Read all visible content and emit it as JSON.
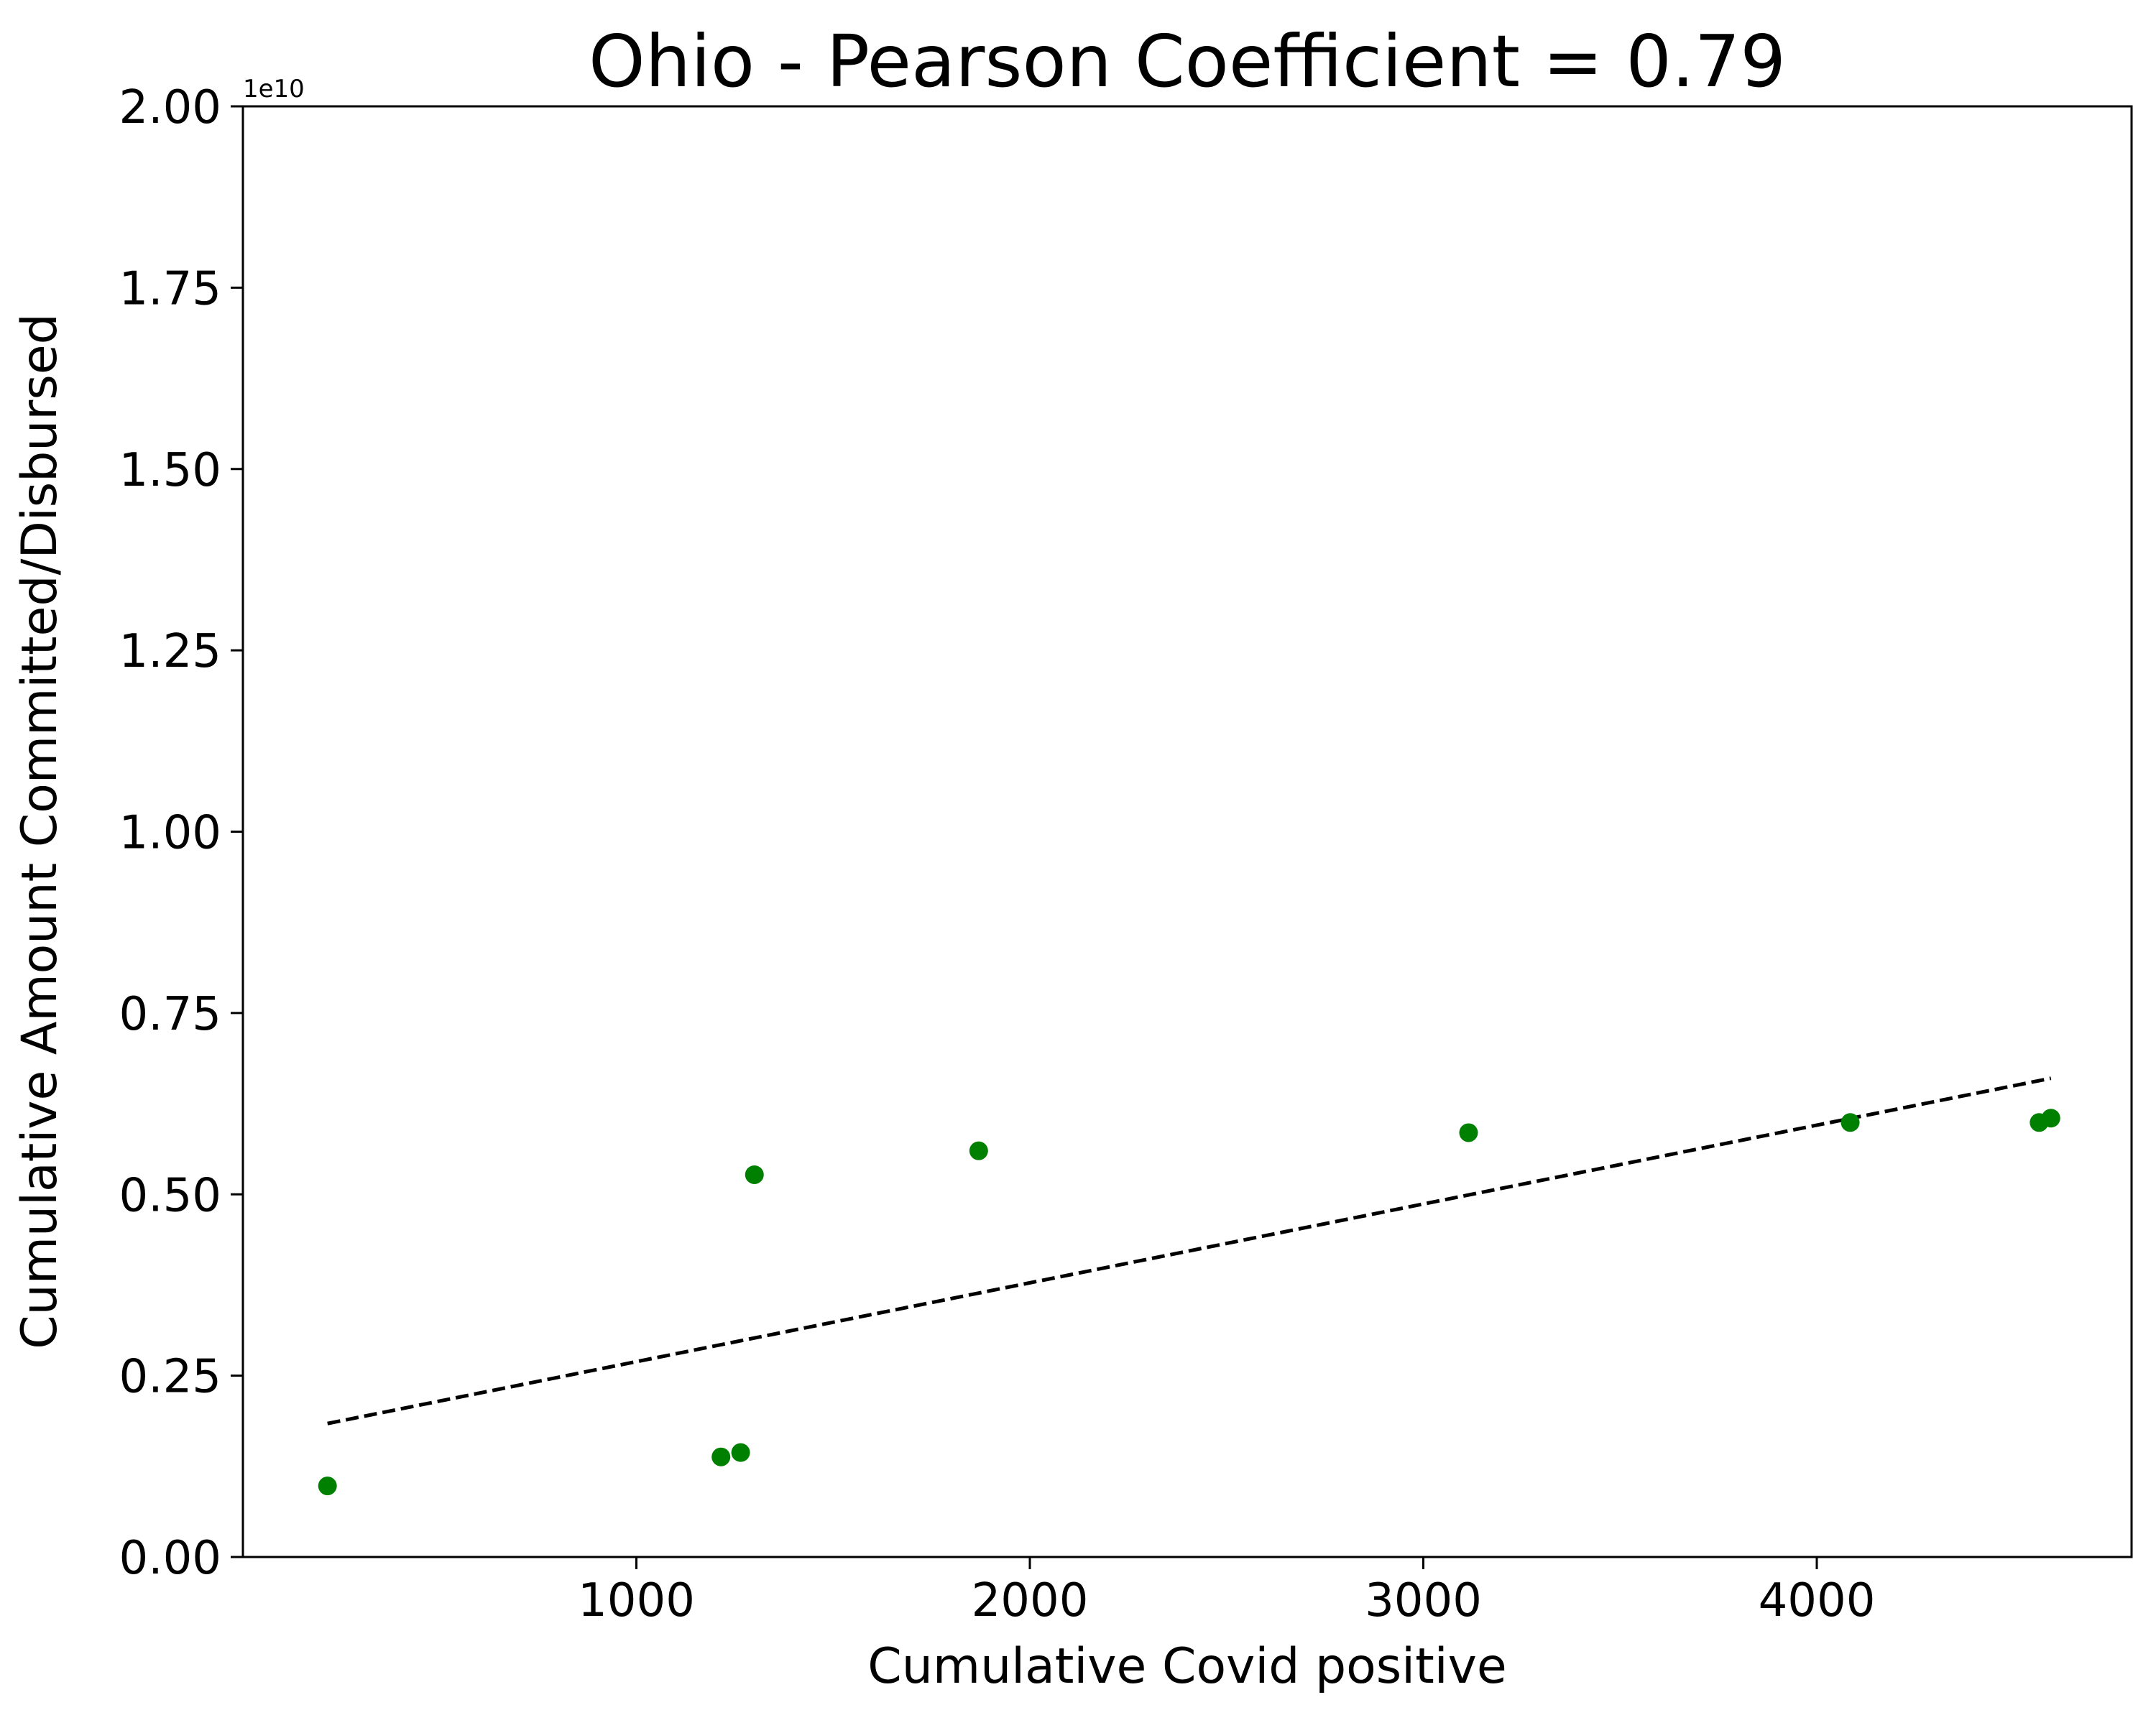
{
  "chart_data": {
    "type": "scatter",
    "title": "Ohio - Pearson Coefficient = 0.79",
    "xlabel": "Cumulative Covid positive",
    "ylabel": "Cumulative Amount Committed/Disbursed",
    "y_offset_text": "1e10",
    "xlim": [
      0,
      4800
    ],
    "ylim": [
      0,
      20000000000
    ],
    "xticks": [
      {
        "value": 1000,
        "label": "1000"
      },
      {
        "value": 2000,
        "label": "2000"
      },
      {
        "value": 3000,
        "label": "3000"
      },
      {
        "value": 4000,
        "label": "4000"
      }
    ],
    "yticks": [
      {
        "value": 0,
        "label": "0.00"
      },
      {
        "value": 2500000000,
        "label": "0.25"
      },
      {
        "value": 5000000000,
        "label": "0.50"
      },
      {
        "value": 7500000000,
        "label": "0.75"
      },
      {
        "value": 10000000000,
        "label": "1.00"
      },
      {
        "value": 12500000000,
        "label": "1.25"
      },
      {
        "value": 15000000000,
        "label": "1.50"
      },
      {
        "value": 17500000000,
        "label": "1.75"
      },
      {
        "value": 20000000000,
        "label": "2.00"
      }
    ],
    "grid": false,
    "series": [
      {
        "color": "#008000",
        "marker": "circle",
        "points": [
          {
            "x": 215,
            "y": 980000000
          },
          {
            "x": 1215,
            "y": 1380000000
          },
          {
            "x": 1265,
            "y": 1440000000
          },
          {
            "x": 1300,
            "y": 5270000000
          },
          {
            "x": 1870,
            "y": 5600000000
          },
          {
            "x": 3115,
            "y": 5850000000
          },
          {
            "x": 4085,
            "y": 5990000000
          },
          {
            "x": 4565,
            "y": 5990000000
          },
          {
            "x": 4595,
            "y": 6050000000
          }
        ]
      }
    ],
    "trendline": {
      "style": "dashed",
      "color": "#000000",
      "start": {
        "x": 215,
        "y": 1840000000
      },
      "end": {
        "x": 4595,
        "y": 6600000000
      }
    }
  }
}
